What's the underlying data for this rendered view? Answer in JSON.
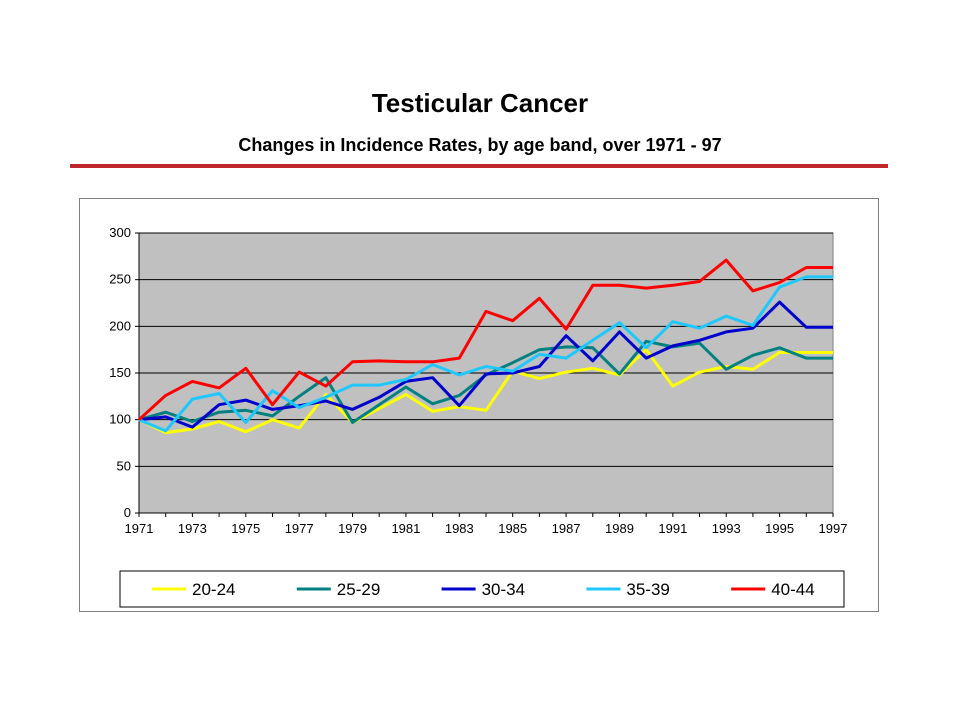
{
  "page": {
    "title": "Testicular Cancer",
    "subtitle": "Changes in Incidence Rates, by age band, over 1971 - 97"
  },
  "chart_data": {
    "type": "line",
    "x": [
      1971,
      1972,
      1973,
      1974,
      1975,
      1976,
      1977,
      1978,
      1979,
      1980,
      1981,
      1982,
      1983,
      1984,
      1985,
      1986,
      1987,
      1988,
      1989,
      1990,
      1991,
      1992,
      1993,
      1994,
      1995,
      1996,
      1997
    ],
    "x_tick_labels": [
      "1971",
      "1973",
      "1975",
      "1977",
      "1979",
      "1981",
      "1983",
      "1985",
      "1987",
      "1989",
      "1991",
      "1993",
      "1995",
      "1997"
    ],
    "y_ticks": [
      "0",
      "50",
      "100",
      "150",
      "200",
      "250",
      "300"
    ],
    "ylim": [
      0,
      300
    ],
    "grid": true,
    "legend": "bottom",
    "plot_background": "#c0c0c0",
    "series": [
      {
        "name": "20-24",
        "color": "#ffff00",
        "values": [
          100,
          86,
          90,
          98,
          87,
          100,
          91,
          127,
          97,
          112,
          127,
          109,
          114,
          110,
          152,
          144,
          151,
          155,
          148,
          175,
          136,
          151,
          157,
          154,
          172,
          172,
          172
        ]
      },
      {
        "name": "25-29",
        "color": "#008080",
        "values": [
          100,
          108,
          98,
          108,
          110,
          104,
          125,
          145,
          97,
          116,
          135,
          117,
          126,
          148,
          161,
          175,
          178,
          177,
          149,
          184,
          178,
          182,
          154,
          169,
          177,
          166,
          166
        ]
      },
      {
        "name": "30-34",
        "color": "#0000cc",
        "values": [
          100,
          103,
          92,
          116,
          121,
          111,
          115,
          120,
          111,
          124,
          141,
          145,
          115,
          149,
          150,
          157,
          190,
          163,
          194,
          166,
          179,
          185,
          194,
          198,
          226,
          199,
          199
        ]
      },
      {
        "name": "35-39",
        "color": "#1ec8ff",
        "values": [
          100,
          88,
          122,
          128,
          97,
          131,
          113,
          124,
          137,
          137,
          143,
          159,
          148,
          157,
          152,
          170,
          166,
          185,
          204,
          177,
          205,
          198,
          211,
          201,
          242,
          253,
          253
        ]
      },
      {
        "name": "40-44",
        "color": "#ff0000",
        "values": [
          100,
          126,
          141,
          134,
          155,
          116,
          151,
          136,
          162,
          163,
          162,
          162,
          166,
          216,
          206,
          230,
          197,
          244,
          244,
          241,
          244,
          248,
          271,
          238,
          247,
          263,
          263
        ]
      }
    ]
  }
}
